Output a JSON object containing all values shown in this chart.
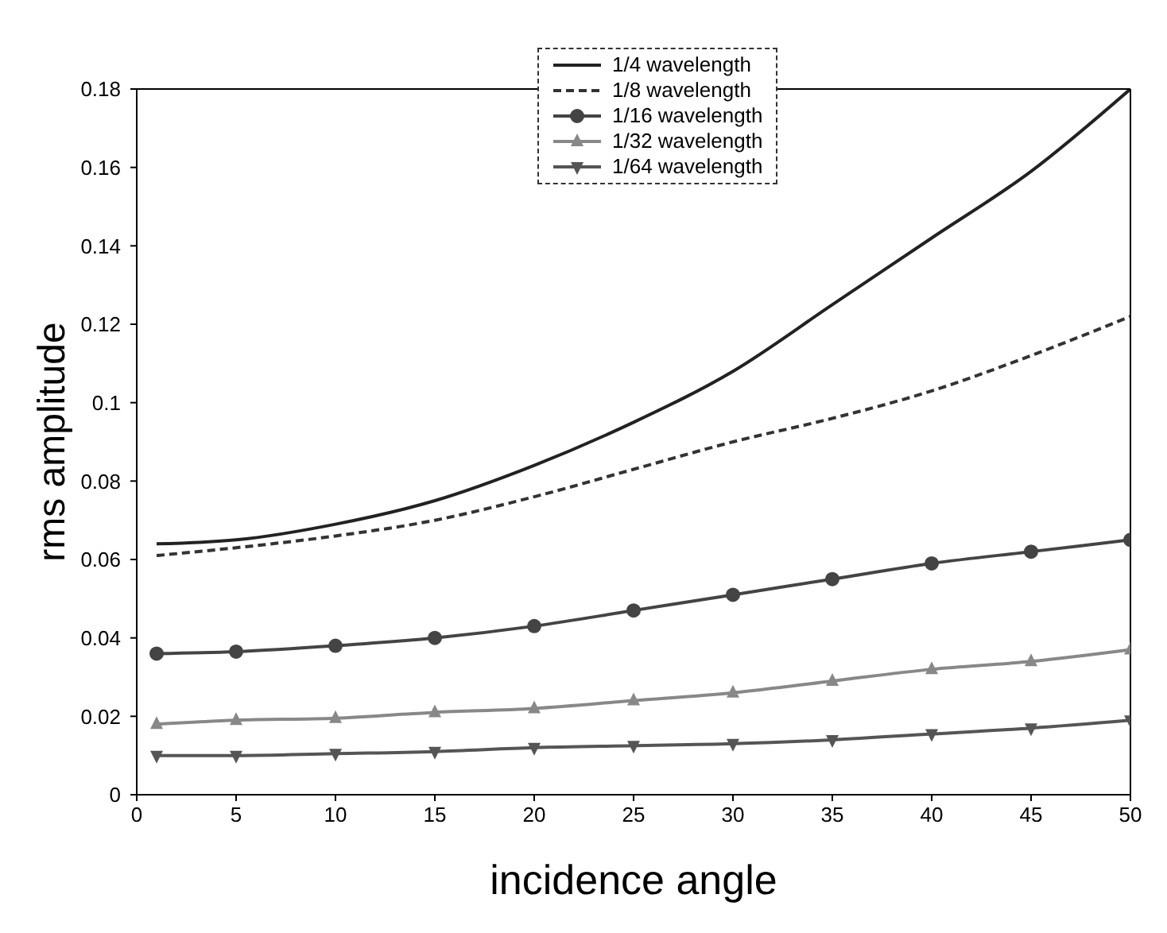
{
  "chart_data": {
    "type": "line",
    "xlabel": "incidence angle",
    "ylabel": "rms amplitude",
    "x": [
      1,
      5,
      10,
      15,
      20,
      25,
      30,
      35,
      40,
      45,
      50
    ],
    "xlim": [
      0,
      50
    ],
    "xticks": [
      0,
      5,
      10,
      15,
      20,
      25,
      30,
      35,
      40,
      45,
      50
    ],
    "ylim": [
      0,
      0.18
    ],
    "yticks": [
      0,
      0.02,
      0.04,
      0.06,
      0.08,
      0.1,
      0.12,
      0.14,
      0.16,
      0.18
    ],
    "grid": false,
    "legend": "top",
    "series": [
      {
        "name": "1/4 wavelength",
        "color": "#222222",
        "line_style": "solid",
        "marker": "none",
        "values": [
          0.064,
          0.065,
          0.069,
          0.075,
          0.084,
          0.095,
          0.108,
          0.125,
          0.142,
          0.159,
          0.18
        ]
      },
      {
        "name": "1/8 wavelength",
        "color": "#333333",
        "line_style": "dashed",
        "marker": "none",
        "values": [
          0.061,
          0.063,
          0.066,
          0.07,
          0.076,
          0.083,
          0.09,
          0.096,
          0.103,
          0.112,
          0.122
        ]
      },
      {
        "name": "1/16 wavelength",
        "color": "#444444",
        "line_style": "solid",
        "marker": "circle",
        "values": [
          0.036,
          0.0365,
          0.038,
          0.04,
          0.043,
          0.047,
          0.051,
          0.055,
          0.059,
          0.062,
          0.065
        ]
      },
      {
        "name": "1/32 wavelength",
        "color": "#888888",
        "line_style": "solid",
        "marker": "triangle",
        "values": [
          0.018,
          0.019,
          0.0195,
          0.021,
          0.022,
          0.024,
          0.026,
          0.029,
          0.032,
          0.034,
          0.037
        ]
      },
      {
        "name": "1/64 wavelength",
        "color": "#555555",
        "line_style": "solid",
        "marker": "triangle-down",
        "values": [
          0.01,
          0.01,
          0.0105,
          0.011,
          0.012,
          0.0125,
          0.013,
          0.014,
          0.0155,
          0.017,
          0.019
        ]
      }
    ]
  }
}
